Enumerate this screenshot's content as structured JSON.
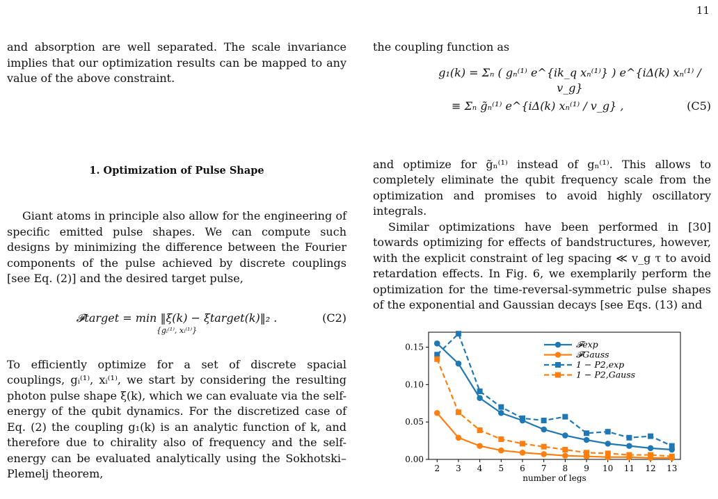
{
  "page_number": "11",
  "left_column": {
    "para1": "and absorption are well separated. The scale invariance implies that our optimization results can be mapped to any value of the above constraint.",
    "heading": "1.   Optimization of Pulse Shape",
    "para2": "Giant atoms in principle also allow for the engineering of specific emitted pulse shapes. We can compute such designs by minimizing the difference between the Fourier components of the pulse achieved by discrete couplings [see Eq. (2)] and the desired target pulse,",
    "eq_c2": "𝓕target = min ‖ξ(k) − ξtarget(k)‖₂ .",
    "eq_c2_sub": "{gᵢ⁽¹⁾, xᵢ⁽¹⁾}",
    "eq_c2_num": "(C2)",
    "para3": "To efficiently optimize for a set of discrete spacial couplings, gᵢ⁽¹⁾, xᵢ⁽¹⁾, we start by considering the resulting photon pulse shape ξ(k), which we can evaluate via the self-energy of the qubit dynamics. For the discretized case of Eq. (2) the coupling g₁(k) is an analytic function of k, and therefore due to chirality also of frequency and the self-energy can be evaluated analytically using the Sokhotski–Plemelj theorem,"
  },
  "right_column": {
    "para1": "the coupling function as",
    "eq_c5_line1": "g₁(k) = Σₙ ( gₙ⁽¹⁾ e^{ik_q xₙ⁽¹⁾} ) e^{iΔ(k) xₙ⁽¹⁾ / v_g}",
    "eq_c5_line2": "≡ Σₙ g̃ₙ⁽¹⁾ e^{iΔ(k) xₙ⁽¹⁾ / v_g} ,",
    "eq_c5_num": "(C5)",
    "para2": "and optimize for g̃ₙ⁽¹⁾ instead of gₙ⁽¹⁾. This allows to completely eliminate the qubit frequency scale from the optimization and promises to avoid highly oscillatory integrals.",
    "para3": "Similar optimizations have been performed in [30] towards optimizing for effects of bandstructures, however, with the explicit constraint of leg spacing ≪ v_g τ to avoid retardation effects. In Fig. 6, we exemplarily perform the optimization for the time-reversal-symmetric pulse shapes of the exponential and Gaussian decays [see Eqs. (13) and"
  },
  "chart_data": {
    "type": "line",
    "x": [
      2,
      3,
      4,
      5,
      6,
      7,
      8,
      9,
      10,
      11,
      12,
      13
    ],
    "xlabel": "number of legs",
    "ylabel": "",
    "xlim": [
      1.6,
      13.4
    ],
    "ylim": [
      0,
      0.17
    ],
    "yticks": [
      0.0,
      0.05,
      0.1,
      0.15
    ],
    "ytick_labels": [
      "0.00",
      "0.05",
      "0.10",
      "0.15"
    ],
    "xtick_labels": [
      "2",
      "3",
      "4",
      "5",
      "6",
      "7",
      "8",
      "9",
      "10",
      "11",
      "12",
      "13"
    ],
    "legend_position": "upper right",
    "series": [
      {
        "name": "𝓕exp",
        "color": "#1f77b4",
        "style": "solid",
        "values": [
          0.155,
          0.128,
          0.082,
          0.062,
          0.052,
          0.04,
          0.032,
          0.026,
          0.021,
          0.018,
          0.015,
          0.013
        ]
      },
      {
        "name": "𝓕Gauss",
        "color": "#ff7f0e",
        "style": "solid",
        "values": [
          0.062,
          0.029,
          0.018,
          0.012,
          0.009,
          0.007,
          0.005,
          0.004,
          0.003,
          0.003,
          0.002,
          0.002
        ]
      },
      {
        "name": "1 − P2,exp",
        "color": "#1f77b4",
        "style": "dashed",
        "values": [
          0.14,
          0.168,
          0.091,
          0.07,
          0.055,
          0.052,
          0.057,
          0.035,
          0.037,
          0.029,
          0.031,
          0.018
        ]
      },
      {
        "name": "1 − P2,Gauss",
        "color": "#ff7f0e",
        "style": "dashed",
        "values": [
          0.134,
          0.063,
          0.039,
          0.027,
          0.021,
          0.017,
          0.013,
          0.009,
          0.008,
          0.006,
          0.006,
          0.004
        ]
      }
    ]
  }
}
